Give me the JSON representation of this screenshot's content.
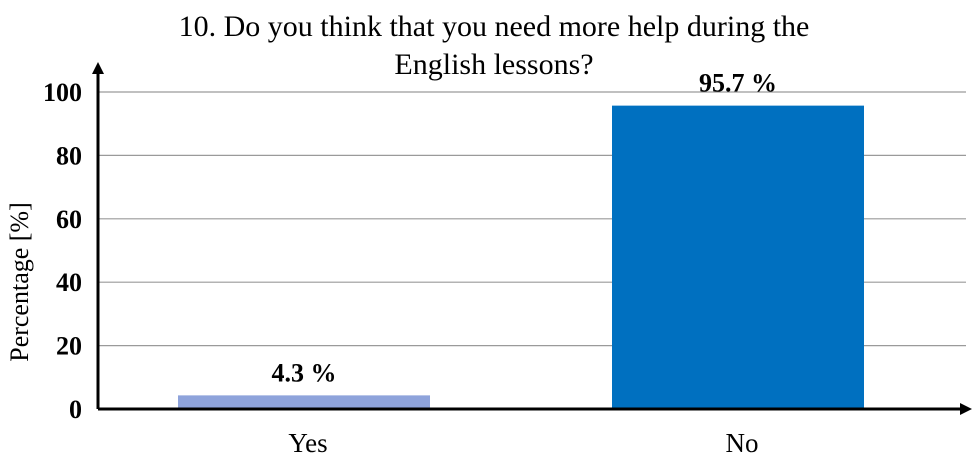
{
  "chart_data": {
    "type": "bar",
    "title_lines": [
      "10. Do you think that you need more help during the",
      "English lessons?"
    ],
    "xlabel": "",
    "ylabel": "Percentage [%]",
    "categories": [
      "Yes",
      "No"
    ],
    "values": [
      4.3,
      95.7
    ],
    "data_labels": [
      "4.3 %",
      "95.7 %"
    ],
    "ylim": [
      0,
      100
    ],
    "yticks": [
      0,
      20,
      40,
      60,
      80,
      100
    ],
    "grid": true,
    "bar_colors": [
      "#8EA3DB",
      "#0070C0"
    ]
  }
}
